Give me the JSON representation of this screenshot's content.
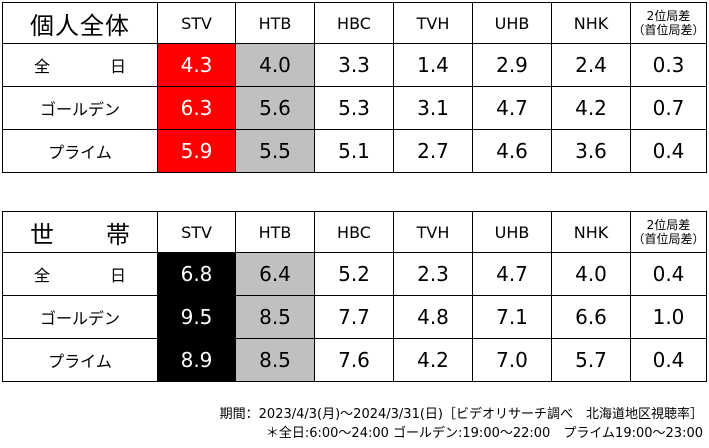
{
  "stations": [
    "STV",
    "HTB",
    "HBC",
    "TVH",
    "UHB",
    "NHK"
  ],
  "diff_header": {
    "line1": "2位局差",
    "line2": "（首位局差）"
  },
  "tables": {
    "individual": {
      "title": "個人全体",
      "rows": [
        {
          "label": "全　日",
          "values": [
            "4.3",
            "4.0",
            "3.3",
            "1.4",
            "2.9",
            "2.4"
          ],
          "diff": "0.3"
        },
        {
          "label": "ゴールデン",
          "values": [
            "6.3",
            "5.6",
            "5.3",
            "3.1",
            "4.7",
            "4.2"
          ],
          "diff": "0.7"
        },
        {
          "label": "プライム",
          "values": [
            "5.9",
            "5.5",
            "5.1",
            "2.7",
            "4.6",
            "3.6"
          ],
          "diff": "0.4"
        }
      ],
      "first_color": "#ff0000",
      "second_color": "#c0c0c0"
    },
    "household": {
      "title": "世　帯",
      "rows": [
        {
          "label": "全　日",
          "values": [
            "6.8",
            "6.4",
            "5.2",
            "2.3",
            "4.7",
            "4.0"
          ],
          "diff": "0.4"
        },
        {
          "label": "ゴールデン",
          "values": [
            "9.5",
            "8.5",
            "7.7",
            "4.8",
            "7.1",
            "6.6"
          ],
          "diff": "1.0"
        },
        {
          "label": "プライム",
          "values": [
            "8.9",
            "8.5",
            "7.6",
            "4.2",
            "7.0",
            "5.7"
          ],
          "diff": "0.4"
        }
      ],
      "first_color": "#000000",
      "second_color": "#c0c0c0"
    }
  },
  "footnotes": {
    "period": "期間：2023/4/3(月)～2024/3/31(日)［ビデオリサーチ調べ　北海道地区視聴率］",
    "time_slots": "＊全日:6:00～24:00 ゴールデン:19:00～22:00　プライム19:00～23:00"
  }
}
